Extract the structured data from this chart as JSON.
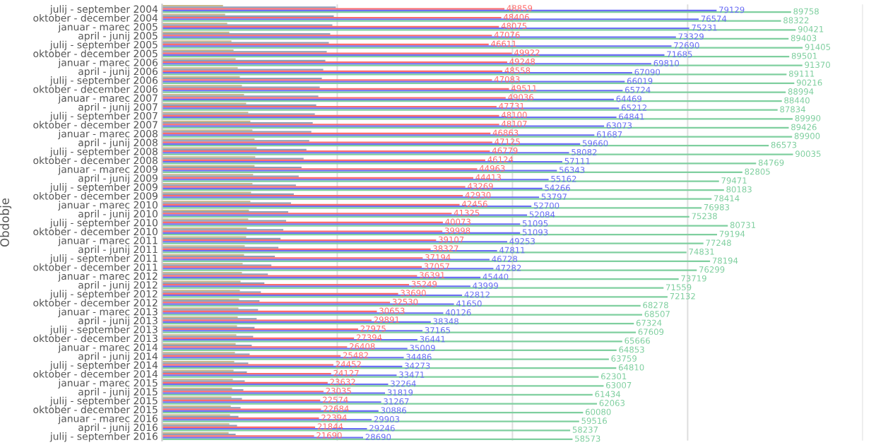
{
  "chart_data": {
    "type": "bar",
    "orientation": "horizontal",
    "ylabel": "Obdobje",
    "categories": [
      "julij - september 2004",
      "oktober - december 2004",
      "januar - marec 2005",
      "april - junij 2005",
      "julij - september 2005",
      "oktober - december 2005",
      "januar - marec 2006",
      "april - junij 2006",
      "julij - september 2006",
      "oktober - december 2006",
      "januar - marec 2007",
      "april - junij 2007",
      "julij - september 2007",
      "oktober - december 2007",
      "januar - marec 2008",
      "april - junij 2008",
      "julij - september 2008",
      "oktober - december 2008",
      "januar - marec 2009",
      "april - junij 2009",
      "julij - september 2009",
      "oktober - december 2009",
      "januar - marec 2010",
      "april - junij 2010",
      "julij - september 2010",
      "oktober - december 2010",
      "januar - marec 2011",
      "april - junij 2011",
      "julij - september 2011",
      "oktober - december 2011",
      "januar - marec 2012",
      "april - junij 2012",
      "julij - september 2012",
      "oktober - december 2012",
      "januar - marec 2013",
      "april - junij 2013",
      "julij - september 2013",
      "oktober - december 2013",
      "januar - marec 2014",
      "april - junij 2014",
      "julij - september 2014",
      "oktober - december 2014",
      "januar - marec 2015",
      "april - junij 2015",
      "julij - september 2015",
      "oktober - december 2015",
      "januar - marec 2016",
      "april - junij 2016",
      "julij - september 2016"
    ],
    "series": [
      {
        "color": "#c9b98c",
        "values": [
          8700,
          9000,
          9300,
          9600,
          9900,
          10200,
          10500,
          10800,
          11100,
          11400,
          11700,
          12000,
          12300,
          12600,
          12900,
          13200,
          13500,
          13300,
          13200,
          13000,
          12900,
          12700,
          12600,
          12400,
          12300,
          12100,
          12000,
          11800,
          11700,
          11500,
          11400,
          11200,
          11100,
          11000,
          10900,
          10800,
          10700,
          10600,
          10500,
          10400,
          10300,
          10200,
          10100,
          10000,
          9900,
          9800,
          9700,
          9600,
          9500
        ]
      },
      {
        "color": "#8e9cb8",
        "values": [
          24800,
          24500,
          24300,
          24000,
          23800,
          23500,
          23300,
          23000,
          22800,
          22500,
          22300,
          22000,
          21800,
          21500,
          21300,
          21000,
          20600,
          20200,
          19900,
          19500,
          19100,
          18800,
          18400,
          18000,
          17700,
          17300,
          16900,
          16600,
          16100,
          15600,
          15100,
          14600,
          14100,
          13900,
          13700,
          13500,
          13200,
          13000,
          12800,
          12500,
          12300,
          12100,
          11800,
          11600,
          11400,
          11200,
          10900,
          10700,
          10500
        ]
      },
      {
        "color": "#ff6b6b",
        "values": [
          48859,
          48406,
          48075,
          47076,
          46611,
          49922,
          49248,
          48558,
          47083,
          49511,
          49036,
          47731,
          48100,
          48107,
          46863,
          47125,
          46779,
          46124,
          44963,
          44413,
          43269,
          42930,
          42456,
          41325,
          40073,
          39998,
          39107,
          38327,
          37194,
          37057,
          36391,
          35249,
          33690,
          32530,
          30653,
          29891,
          27975,
          27394,
          26408,
          25482,
          24452,
          24127,
          23632,
          23035,
          22574,
          22684,
          22394,
          21844,
          21690
        ],
        "value_labels": [
          "48859",
          "48406",
          "48075",
          "47076",
          "46611",
          "49922",
          "49248",
          "48558",
          "47083",
          "49511",
          "49036",
          "47731",
          "48100",
          "48107",
          "46863",
          "47125",
          "46779",
          "46124",
          "44963",
          "44413",
          "43269",
          "42930",
          "42456",
          "41325",
          "40073",
          "39998",
          "39107",
          "38327",
          "37194",
          "37057",
          "36391",
          "35249",
          "33690",
          "32530",
          "30653",
          "29891",
          "27975",
          "27394",
          "26408",
          "25482",
          "24452",
          "24127",
          "23632",
          "23035",
          "22574",
          "22684",
          "22394",
          "21844",
          "21690"
        ]
      },
      {
        "color": "#6b6ef5",
        "values": [
          79129,
          76574,
          75231,
          73329,
          72690,
          71685,
          69810,
          67090,
          66019,
          65724,
          64469,
          65212,
          64841,
          63073,
          61687,
          59660,
          58082,
          57111,
          56343,
          55162,
          54266,
          53797,
          52700,
          52084,
          51095,
          51093,
          49253,
          47811,
          46728,
          47282,
          45440,
          43999,
          42812,
          41650,
          40126,
          38348,
          37165,
          36441,
          35009,
          34486,
          34273,
          33471,
          32264,
          31819,
          31267,
          30886,
          29903,
          29246,
          28690
        ],
        "value_labels": [
          "79129",
          "76574",
          "75231",
          "73329",
          "72690",
          "71685",
          "69810",
          "67090",
          "66019",
          "65724",
          "64469",
          "65212",
          "64841",
          "63073",
          "61687",
          "59660",
          "58082",
          "57111",
          "56343",
          "55162",
          "54266",
          "53797",
          "52700",
          "52084",
          "51095",
          "51093",
          "49253",
          "47811",
          "46728",
          "47282",
          "45440",
          "43999",
          "42812",
          "41650",
          "40126",
          "38348",
          "37165",
          "36441",
          "35009",
          "34486",
          "34273",
          "33471",
          "32264",
          "31819",
          "31267",
          "30886",
          "29903",
          "29246",
          "28690"
        ]
      },
      {
        "color": "#7fcf9f",
        "values": [
          89758,
          88322,
          90421,
          89403,
          91405,
          89501,
          91370,
          89111,
          90216,
          88994,
          88440,
          87834,
          89990,
          89426,
          89900,
          86573,
          90035,
          84769,
          82805,
          79471,
          80183,
          78414,
          76983,
          75238,
          80731,
          79194,
          77248,
          74831,
          78194,
          76299,
          73719,
          71559,
          72132,
          68278,
          68507,
          67324,
          67609,
          65666,
          64853,
          63759,
          64810,
          62301,
          63007,
          61434,
          62063,
          60080,
          59516,
          58237,
          58573
        ],
        "value_labels": [
          "89758",
          "88322",
          "90421",
          "89403",
          "91405",
          "89501",
          "91370",
          "89111",
          "90216",
          "88994",
          "88440",
          "87834",
          "89990",
          "89426",
          "89900",
          "86573",
          "90035",
          "84769",
          "82805",
          "79471",
          "80183",
          "78414",
          "76983",
          "75238",
          "80731",
          "79194",
          "77248",
          "74831",
          "78194",
          "76299",
          "73719",
          "71559",
          "72132",
          "68278",
          "68507",
          "67324",
          "67609",
          "65666",
          "64853",
          "63759",
          "64810",
          "62301",
          "63007",
          "61434",
          "62063",
          "60080",
          "59516",
          "58237",
          "58573"
        ]
      }
    ],
    "xlim": [
      0,
      100000
    ],
    "xticks": [
      {
        "value": 0,
        "label": null
      },
      {
        "value": 25000,
        "label": null
      },
      {
        "value": 50000,
        "label": null
      },
      {
        "value": 75000,
        "label": null
      },
      {
        "value": 100000,
        "label": null
      }
    ],
    "grid": "x",
    "tick_labels": "y"
  }
}
